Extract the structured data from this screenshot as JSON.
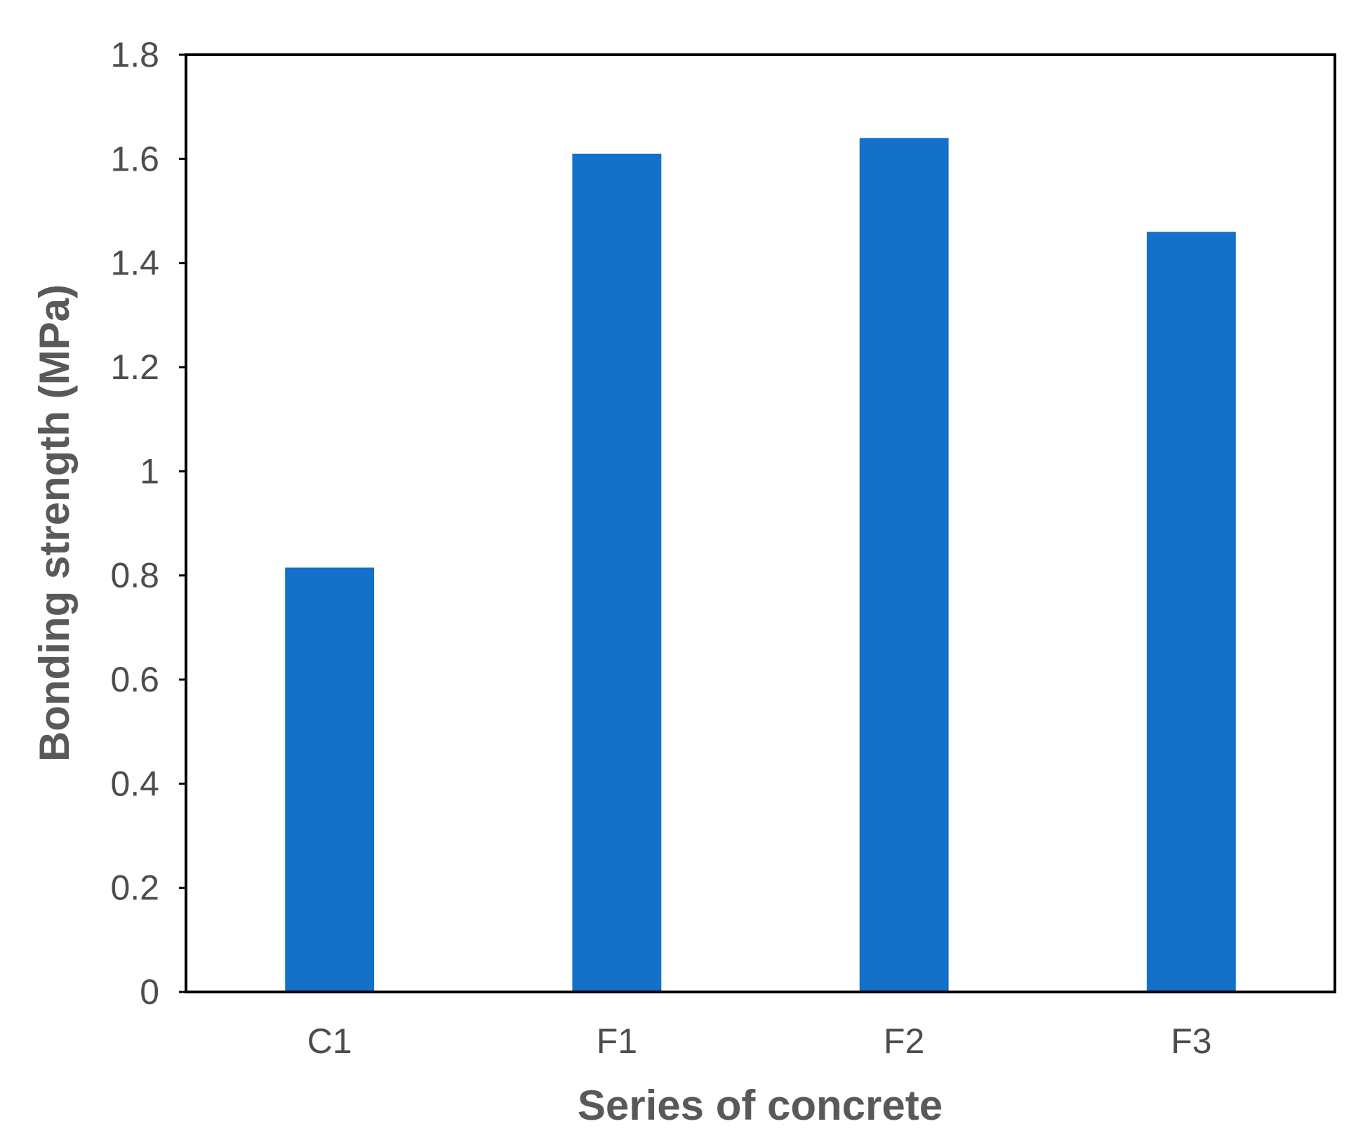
{
  "chart_data": {
    "type": "bar",
    "title": "",
    "xlabel": "Series of concrete",
    "ylabel": "Bonding strength (MPa)",
    "categories": [
      "C1",
      "F1",
      "F2",
      "F3"
    ],
    "values": [
      0.815,
      1.61,
      1.64,
      1.46
    ],
    "ylim": [
      0,
      1.8
    ],
    "y_ticks": [
      0,
      0.2,
      0.4,
      0.6,
      0.8,
      1,
      1.2,
      1.4,
      1.6,
      1.8
    ],
    "y_tick_labels": [
      "0",
      "0.2",
      "0.4",
      "0.6",
      "0.8",
      "1",
      "1.2",
      "1.4",
      "1.6",
      "1.8"
    ],
    "bar_color": "#1470c8",
    "grid": false,
    "legend": "none"
  }
}
